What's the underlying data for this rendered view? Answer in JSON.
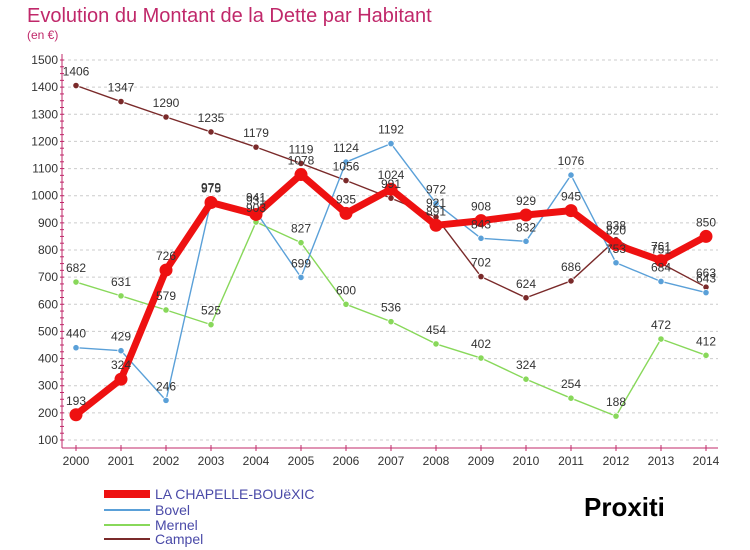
{
  "chart_data": {
    "type": "line",
    "title": "Evolution du Montant de la Dette par Habitant",
    "subtitle": "(en €)",
    "x": [
      "2000",
      "2001",
      "2002",
      "2003",
      "2004",
      "2005",
      "2006",
      "2007",
      "2008",
      "2009",
      "2010",
      "2011",
      "2012",
      "2013",
      "2014"
    ],
    "ylim": [
      100,
      1500
    ],
    "yticks": [
      100,
      200,
      300,
      400,
      500,
      600,
      700,
      800,
      900,
      1000,
      1100,
      1200,
      1300,
      1400,
      1500
    ],
    "grid": "horizontal dashed",
    "legend_position": "bottom-left",
    "series": [
      {
        "name": "LA CHAPELLE-BOUëXIC",
        "color": "#ee1111",
        "values": [
          193,
          324,
          726,
          975,
          931,
          1078,
          935,
          1024,
          891,
          908,
          929,
          945,
          820,
          761,
          850
        ]
      },
      {
        "name": "Bovel",
        "color": "#5aa0d8",
        "values": [
          440,
          429,
          246,
          979,
          941,
          699,
          1124,
          1192,
          972,
          843,
          832,
          1076,
          753,
          684,
          643
        ]
      },
      {
        "name": "Mernel",
        "color": "#88d85a",
        "values": [
          682,
          631,
          579,
          525,
          903,
          827,
          600,
          536,
          454,
          402,
          324,
          254,
          188,
          472,
          412
        ]
      },
      {
        "name": "Campel",
        "color": "#7a2a2a",
        "values": [
          1406,
          1347,
          1290,
          1235,
          1179,
          1119,
          1056,
          991,
          921,
          702,
          624,
          686,
          838,
          751,
          663
        ]
      }
    ]
  },
  "logo": {
    "text": "Proxiti"
  }
}
